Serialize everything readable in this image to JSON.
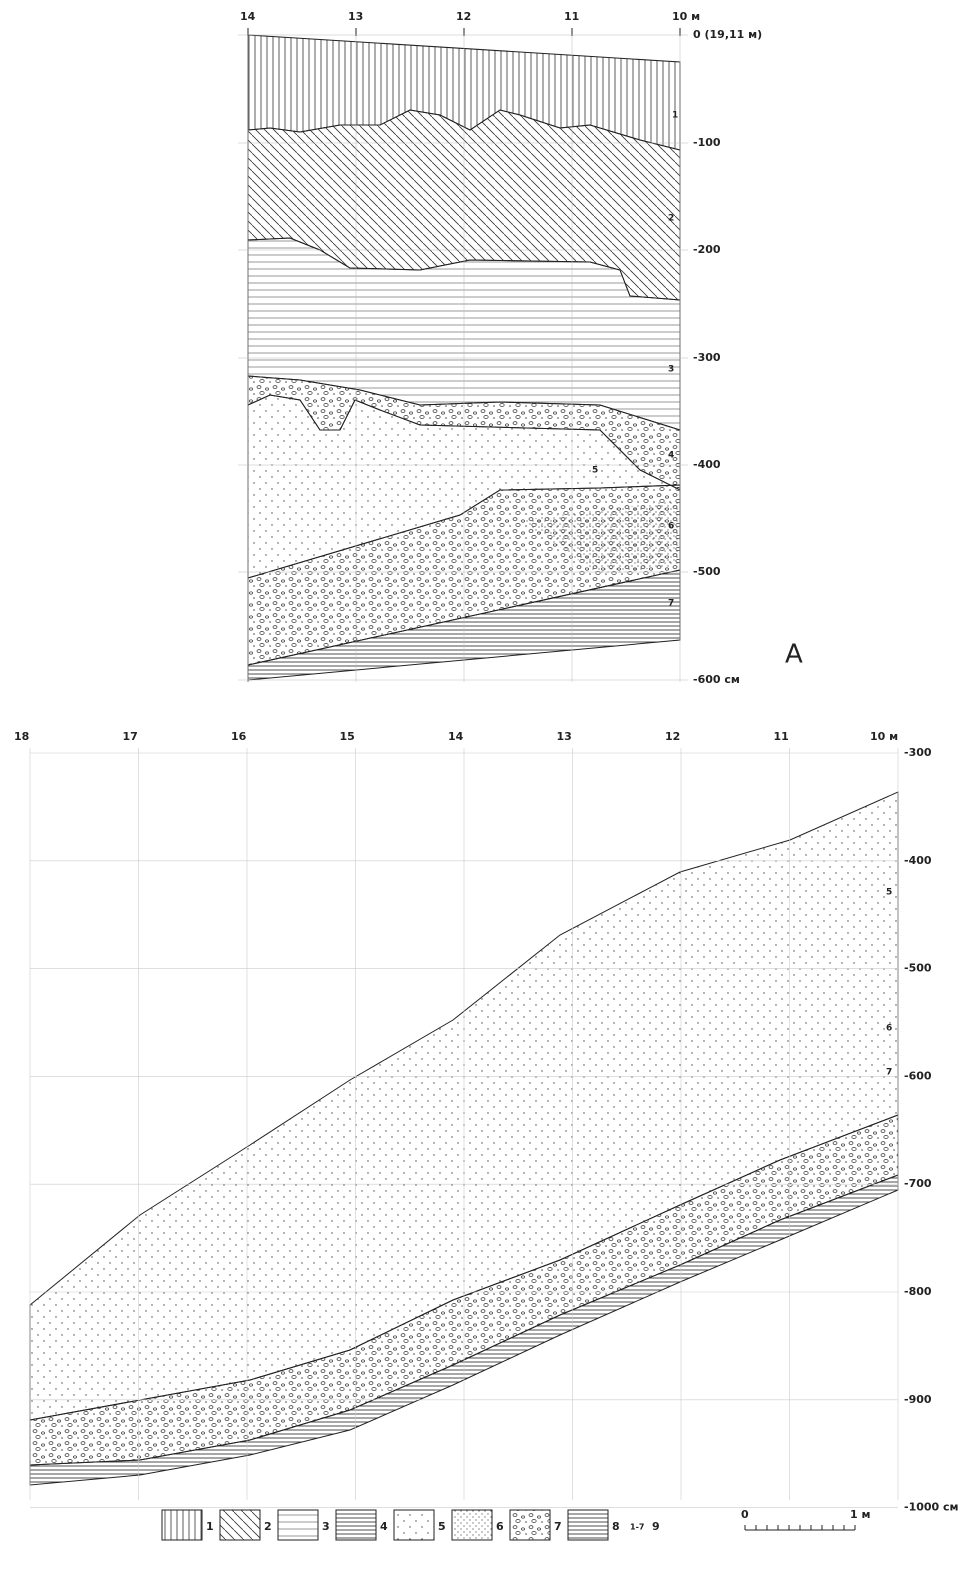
{
  "section_a": {
    "x_labels": [
      "14",
      "13",
      "12",
      "11",
      "10 м"
    ],
    "depth_labels": [
      "0 (19,11 м)",
      "-100",
      "-200",
      "-300",
      "-400",
      "-500",
      "-600 см"
    ],
    "layer_labels": [
      "1",
      "2",
      "3",
      "4",
      "5",
      "6",
      "7"
    ],
    "panel_label": "А"
  },
  "section_b": {
    "x_labels": [
      "18",
      "17",
      "16",
      "15",
      "14",
      "13",
      "12",
      "11",
      "10 м"
    ],
    "depth_labels": [
      "-300",
      "-400",
      "-500",
      "-600",
      "-700",
      "-800",
      "-900",
      "-1000 см"
    ],
    "layer_labels": [
      "5",
      "6",
      "7"
    ]
  },
  "legend": {
    "items": [
      "1",
      "2",
      "3",
      "4",
      "5",
      "6",
      "7",
      "8"
    ],
    "sub": "1-7",
    "last": "9"
  },
  "scale": {
    "start": "0",
    "end": "1 м"
  }
}
